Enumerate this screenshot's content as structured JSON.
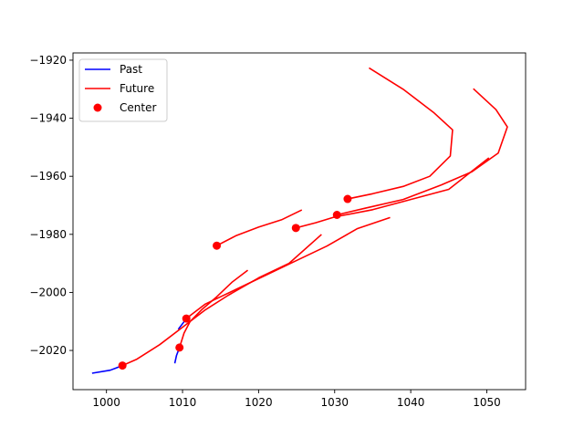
{
  "chart_data": {
    "type": "line",
    "title": "",
    "xlabel": "",
    "ylabel": "",
    "xlim": [
      995.6,
      1055.1
    ],
    "ylim": [
      -2033.5,
      -1917.5
    ],
    "xticks": [
      1000,
      1010,
      1020,
      1030,
      1040,
      1050
    ],
    "yticks": [
      -2020,
      -2000,
      -1980,
      -1960,
      -1940,
      -1920
    ],
    "xtick_labels": [
      "1000",
      "1010",
      "1020",
      "1030",
      "1040",
      "1050"
    ],
    "ytick_labels": [
      "−2020",
      "−2000",
      "−1980",
      "−1960",
      "−1940",
      "−1920"
    ],
    "grid": false,
    "legend": {
      "position": "top-left",
      "entries": [
        {
          "label": "Past",
          "color": "#0000ff",
          "marker": "line"
        },
        {
          "label": "Future",
          "color": "#ff0000",
          "marker": "line"
        },
        {
          "label": "Center",
          "color": "#ff0000",
          "marker": "dot"
        }
      ]
    },
    "series": [
      {
        "role": "past",
        "color": "#0000ff",
        "points": [
          [
            998.2,
            -2027.8
          ],
          [
            1000.5,
            -2026.8
          ],
          [
            1002.1,
            -2025.2
          ]
        ]
      },
      {
        "role": "past",
        "color": "#0000ff",
        "points": [
          [
            1009.0,
            -2024.2
          ],
          [
            1009.2,
            -2021.8
          ],
          [
            1009.6,
            -2019.0
          ]
        ]
      },
      {
        "role": "past",
        "color": "#0000ff",
        "points": [
          [
            1009.5,
            -2012.5
          ],
          [
            1010.0,
            -2010.8
          ],
          [
            1010.5,
            -2009.0
          ]
        ]
      },
      {
        "role": "future",
        "color": "#ff0000",
        "points": [
          [
            1002.1,
            -2025.2
          ],
          [
            1004.0,
            -2023.0
          ],
          [
            1007.0,
            -2018.0
          ],
          [
            1010.0,
            -2012.0
          ],
          [
            1013.0,
            -2006.0
          ],
          [
            1016.0,
            -2001.0
          ],
          [
            1020.0,
            -1995.0
          ],
          [
            1024.0,
            -1990.0
          ],
          [
            1028.2,
            -1980.2
          ]
        ]
      },
      {
        "role": "future",
        "color": "#ff0000",
        "points": [
          [
            1009.6,
            -2019.0
          ],
          [
            1010.2,
            -2014.0
          ],
          [
            1011.0,
            -2010.0
          ],
          [
            1012.5,
            -2006.0
          ],
          [
            1014.5,
            -2001.5
          ],
          [
            1016.5,
            -1996.5
          ],
          [
            1018.5,
            -1992.5
          ]
        ]
      },
      {
        "role": "future",
        "color": "#ff0000",
        "points": [
          [
            1010.5,
            -2009.0
          ],
          [
            1013.0,
            -2004.0
          ],
          [
            1017.0,
            -1999.0
          ],
          [
            1021.0,
            -1994.0
          ],
          [
            1025.0,
            -1989.0
          ],
          [
            1029.0,
            -1984.0
          ],
          [
            1033.0,
            -1978.0
          ],
          [
            1037.2,
            -1974.3
          ]
        ]
      },
      {
        "role": "future",
        "color": "#ff0000",
        "points": [
          [
            1014.5,
            -1983.9
          ],
          [
            1017.0,
            -1980.5
          ],
          [
            1020.0,
            -1977.5
          ],
          [
            1023.0,
            -1975.0
          ],
          [
            1025.6,
            -1971.7
          ]
        ]
      },
      {
        "role": "future",
        "color": "#ff0000",
        "points": [
          [
            1024.9,
            -1977.8
          ],
          [
            1027.5,
            -1976.0
          ],
          [
            1030.0,
            -1974.0
          ],
          [
            1035.0,
            -1971.5
          ],
          [
            1040.0,
            -1968.0
          ],
          [
            1045.0,
            -1964.5
          ],
          [
            1050.2,
            -1953.8
          ]
        ]
      },
      {
        "role": "future",
        "color": "#ff0000",
        "points": [
          [
            1030.3,
            -1973.3
          ],
          [
            1034.0,
            -1971.0
          ],
          [
            1039.0,
            -1968.0
          ],
          [
            1044.0,
            -1963.0
          ],
          [
            1048.0,
            -1958.5
          ],
          [
            1051.5,
            -1952.0
          ],
          [
            1052.7,
            -1943.0
          ],
          [
            1051.2,
            -1937.0
          ],
          [
            1048.3,
            -1930.0
          ]
        ]
      },
      {
        "role": "future",
        "color": "#ff0000",
        "points": [
          [
            1031.7,
            -1967.8
          ],
          [
            1035.0,
            -1966.0
          ],
          [
            1039.0,
            -1963.5
          ],
          [
            1042.5,
            -1960.0
          ],
          [
            1045.2,
            -1953.0
          ],
          [
            1045.5,
            -1944.0
          ],
          [
            1043.0,
            -1938.0
          ],
          [
            1039.0,
            -1930.0
          ],
          [
            1034.6,
            -1922.8
          ]
        ]
      }
    ],
    "centers": [
      {
        "x": 1002.1,
        "y": -2025.2
      },
      {
        "x": 1009.6,
        "y": -2019.0
      },
      {
        "x": 1010.5,
        "y": -2009.0
      },
      {
        "x": 1014.5,
        "y": -1983.9
      },
      {
        "x": 1024.9,
        "y": -1977.8
      },
      {
        "x": 1030.3,
        "y": -1973.3
      },
      {
        "x": 1031.7,
        "y": -1967.8
      }
    ]
  }
}
